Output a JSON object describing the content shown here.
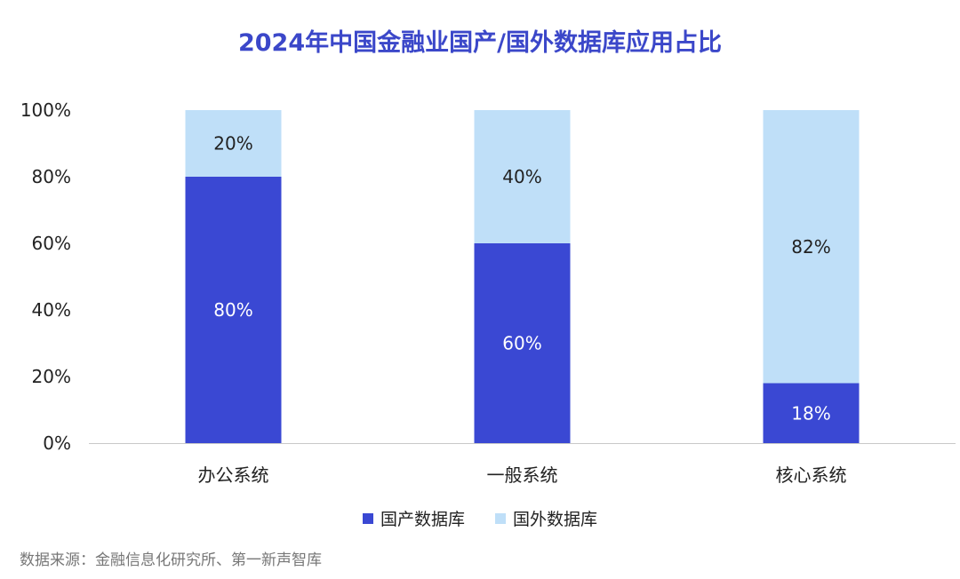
{
  "title": "2024年中国金融业国产/国外数据库应用占比",
  "source": "数据来源：金融信息化研究所、第一新声智库",
  "colors": {
    "domestic": "#3A48D3",
    "foreign": "#BFDFF8"
  },
  "chart_data": {
    "type": "bar",
    "stacked": true,
    "title": "2024年中国金融业国产/国外数据库应用占比",
    "categories": [
      "办公系统",
      "一般系统",
      "核心系统"
    ],
    "series": [
      {
        "name": "国产数据库",
        "values": [
          80,
          60,
          18
        ],
        "labels": [
          "80%",
          "60%",
          "18%"
        ]
      },
      {
        "name": "国外数据库",
        "values": [
          20,
          40,
          82
        ],
        "labels": [
          "20%",
          "40%",
          "82%"
        ]
      }
    ],
    "yticks": [
      "0%",
      "20%",
      "40%",
      "60%",
      "80%",
      "100%"
    ],
    "ylim": [
      0,
      100
    ],
    "grid": false,
    "legend": "bottom-center"
  }
}
